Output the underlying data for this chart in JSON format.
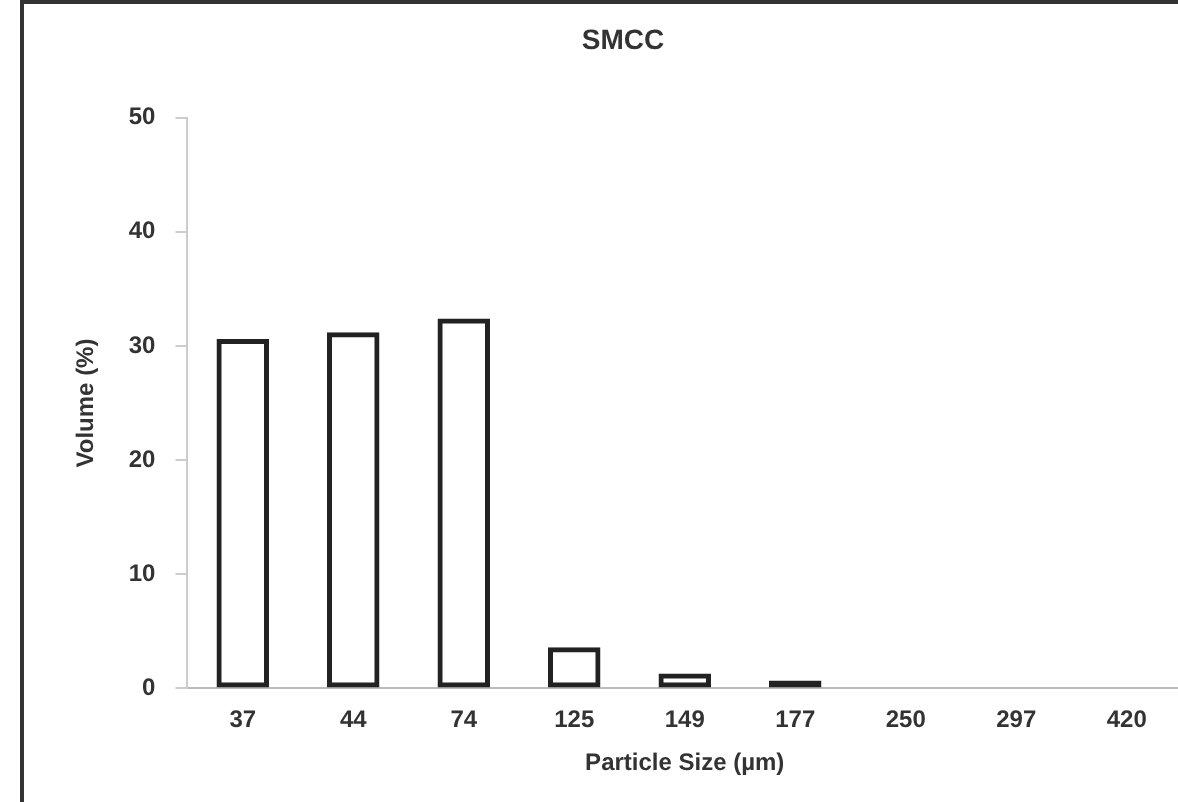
{
  "chart_data": {
    "type": "bar",
    "title": "SMCC",
    "xlabel": "Particle Size (µm)",
    "ylabel": "Volume (%)",
    "categories": [
      "37",
      "44",
      "74",
      "125",
      "149",
      "177",
      "250",
      "297",
      "420"
    ],
    "values": [
      30.6,
      31.2,
      32.4,
      3.6,
      1.3,
      0.7,
      0,
      0,
      0
    ],
    "color": "#222222",
    "ylim": [
      0,
      50
    ],
    "yticks": [
      0,
      10,
      20,
      30,
      40,
      50
    ],
    "grid": false,
    "legend": false
  }
}
